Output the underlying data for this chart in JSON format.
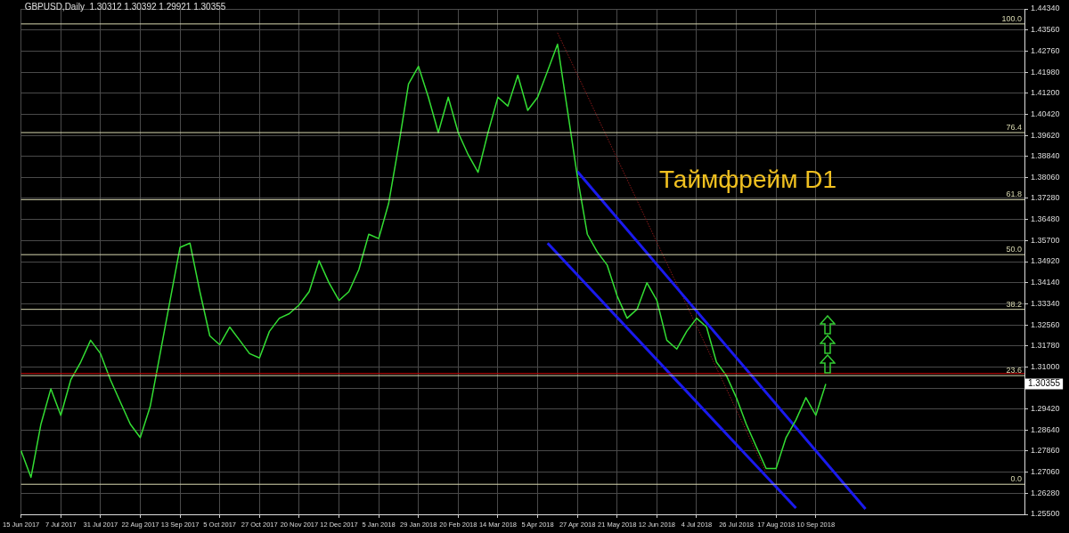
{
  "chart_data": {
    "type": "line",
    "title": "GBPUSD,Daily  1.30312 1.30392 1.29921 1.30355",
    "categories": [
      "15 Jun 2017",
      null,
      null,
      null,
      "7 Jul 2017",
      null,
      null,
      null,
      "31 Jul 2017",
      null,
      null,
      null,
      "22 Aug 2017",
      null,
      null,
      null,
      "13 Sep 2017",
      null,
      null,
      null,
      "5 Oct 2017",
      null,
      null,
      null,
      "27 Oct 2017",
      null,
      null,
      null,
      "20 Nov 2017",
      null,
      null,
      null,
      "12 Dec 2017",
      null,
      null,
      null,
      "5 Jan 2018",
      null,
      null,
      null,
      "29 Jan 2018",
      null,
      null,
      null,
      "20 Feb 2018",
      null,
      null,
      null,
      "14 Mar 2018",
      null,
      null,
      null,
      "5 Apr 2018",
      null,
      null,
      null,
      "27 Apr 2018",
      null,
      null,
      null,
      "21 May 2018",
      null,
      null,
      null,
      "12 Jun 2018",
      null,
      null,
      null,
      "4 Jul 2018",
      null,
      null,
      null,
      "26 Jul 2018",
      null,
      null,
      null,
      "17 Aug 2018",
      null,
      null,
      null,
      "10 Sep 2018",
      null,
      null,
      null,
      null,
      null,
      null,
      null,
      null,
      null,
      null,
      null,
      null,
      null,
      null,
      null,
      null,
      null,
      null,
      null,
      null,
      null
    ],
    "series": [
      {
        "color": "#33dd33",
        "values": [
          1.2787,
          1.2688,
          1.2886,
          1.3018,
          1.2919,
          1.3051,
          1.3117,
          1.3199,
          1.3149,
          1.3051,
          1.2968,
          1.2886,
          1.2836,
          1.2952,
          1.3149,
          1.3347,
          1.3545,
          1.3561,
          1.338,
          1.3215,
          1.3182,
          1.3248,
          1.3199,
          1.3149,
          1.3133,
          1.3232,
          1.3281,
          1.3298,
          1.3331,
          1.338,
          1.3495,
          1.3413,
          1.3347,
          1.338,
          1.3462,
          1.3594,
          1.3578,
          1.3709,
          1.3923,
          1.4154,
          1.422,
          1.4105,
          1.3973,
          1.4105,
          1.3973,
          1.3891,
          1.3825,
          1.3973,
          1.4105,
          1.4072,
          1.4187,
          1.4056,
          1.4105,
          1.4203,
          1.4302,
          1.4056,
          1.3808,
          1.3594,
          1.3528,
          1.3479,
          1.3364,
          1.3281,
          1.3314,
          1.3413,
          1.3347,
          1.3199,
          1.3166,
          1.3232,
          1.3281,
          1.3248,
          1.3117,
          1.3067,
          1.2985,
          1.2886,
          1.2803,
          1.2721,
          1.2721,
          1.2836,
          1.2902,
          1.2985,
          1.2919,
          1.3036,
          null,
          null,
          null,
          null,
          null,
          null,
          null,
          null,
          null,
          null,
          null,
          null,
          null,
          null,
          null,
          null,
          null,
          null,
          null,
          null
        ]
      },
      {
        "color": "#1a1aee",
        "values": [
          null,
          null,
          null,
          null,
          null,
          null,
          null,
          null,
          null,
          null,
          null,
          null,
          null,
          null,
          null,
          null,
          null,
          null,
          null,
          null,
          null,
          null,
          null,
          null,
          null,
          null,
          null,
          null,
          null,
          null,
          null,
          null,
          null,
          null,
          null,
          null,
          null,
          null,
          null,
          null,
          null,
          null,
          null,
          null,
          null,
          null,
          null,
          null,
          null,
          null,
          null,
          null,
          null,
          null,
          null,
          null,
          1.3828,
          null,
          null,
          null,
          null,
          null,
          null,
          null,
          null,
          null,
          null,
          null,
          null,
          null,
          null,
          null,
          null,
          null,
          null,
          null,
          null,
          null,
          null,
          null,
          null,
          null,
          null,
          null,
          null,
          1.257,
          null,
          null,
          null,
          null,
          null,
          null,
          null,
          null,
          null,
          null,
          null,
          null,
          null,
          null,
          null,
          null
        ]
      },
      {
        "color": "#1a1aee",
        "values": [
          null,
          null,
          null,
          null,
          null,
          null,
          null,
          null,
          null,
          null,
          null,
          null,
          null,
          null,
          null,
          null,
          null,
          null,
          null,
          null,
          null,
          null,
          null,
          null,
          null,
          null,
          null,
          null,
          null,
          null,
          null,
          null,
          null,
          null,
          null,
          null,
          null,
          null,
          null,
          null,
          null,
          null,
          null,
          null,
          null,
          null,
          null,
          null,
          null,
          null,
          null,
          null,
          null,
          1.3561,
          null,
          null,
          null,
          null,
          null,
          null,
          null,
          null,
          null,
          null,
          null,
          null,
          null,
          null,
          null,
          null,
          null,
          null,
          null,
          null,
          null,
          null,
          null,
          null,
          1.2573,
          null,
          null,
          null,
          null,
          null,
          null,
          null,
          null,
          null,
          null,
          null,
          null,
          null,
          null,
          null,
          null,
          null,
          null,
          null,
          null,
          null,
          null,
          null
        ]
      },
      {
        "color": "#8b1a1a",
        "line_style": "dotted",
        "values": [
          null,
          null,
          null,
          null,
          null,
          null,
          null,
          null,
          null,
          null,
          null,
          null,
          null,
          null,
          null,
          null,
          null,
          null,
          null,
          null,
          null,
          null,
          null,
          null,
          null,
          null,
          null,
          null,
          null,
          null,
          null,
          null,
          null,
          null,
          null,
          null,
          null,
          null,
          null,
          null,
          null,
          null,
          null,
          null,
          null,
          null,
          null,
          null,
          null,
          null,
          null,
          null,
          null,
          null,
          1.4345,
          null,
          null,
          null,
          null,
          null,
          null,
          null,
          null,
          null,
          null,
          null,
          null,
          null,
          null,
          null,
          null,
          null,
          null,
          null,
          null,
          1.2705,
          null,
          null,
          null,
          null,
          null,
          null,
          null,
          null,
          null,
          null,
          null,
          null,
          null,
          null,
          null,
          null,
          null,
          null,
          null,
          null,
          null,
          null,
          null,
          null,
          null,
          null
        ]
      }
    ],
    "ylim": [
      1.255,
      1.4434
    ],
    "yticks": [
      {
        "value": 1.255,
        "label": "1.25500"
      },
      {
        "value": 1.2628,
        "label": "1.26280"
      },
      {
        "value": 1.2706,
        "label": "1.27060"
      },
      {
        "value": 1.2786,
        "label": "1.27860"
      },
      {
        "value": 1.2864,
        "label": "1.28640"
      },
      {
        "value": 1.2942,
        "label": "1.29420"
      },
      {
        "value": 1.302,
        "label": null
      },
      {
        "value": 1.31,
        "label": "1.31000"
      },
      {
        "value": 1.3178,
        "label": "1.31780"
      },
      {
        "value": 1.3256,
        "label": "1.32560"
      },
      {
        "value": 1.3334,
        "label": "1.33340"
      },
      {
        "value": 1.3414,
        "label": "1.34140"
      },
      {
        "value": 1.3492,
        "label": "1.34920"
      },
      {
        "value": 1.357,
        "label": "1.35700"
      },
      {
        "value": 1.3648,
        "label": "1.36480"
      },
      {
        "value": 1.3728,
        "label": "1.37280"
      },
      {
        "value": 1.3806,
        "label": "1.38060"
      },
      {
        "value": 1.3884,
        "label": "1.38840"
      },
      {
        "value": 1.3962,
        "label": "1.39620"
      },
      {
        "value": 1.4042,
        "label": "1.40420"
      },
      {
        "value": 1.412,
        "label": "1.41200"
      },
      {
        "value": 1.4198,
        "label": "1.41980"
      },
      {
        "value": 1.4276,
        "label": "1.42760"
      },
      {
        "value": 1.4356,
        "label": "1.43560"
      },
      {
        "value": 1.4434,
        "label": "1.44340"
      }
    ],
    "ref_lines": [
      {
        "axis": "y",
        "value": 1.4378,
        "color": "#d8d8b0"
      },
      {
        "axis": "y",
        "value": 1.3973,
        "color": "#d8d8b0"
      },
      {
        "axis": "y",
        "value": 1.3723,
        "color": "#d8d8b0"
      },
      {
        "axis": "y",
        "value": 1.3518,
        "color": "#d8d8b0"
      },
      {
        "axis": "y",
        "value": 1.3314,
        "color": "#d8d8b0"
      },
      {
        "axis": "y",
        "value": 1.3067,
        "color": "#d8d8b0"
      },
      {
        "axis": "y",
        "value": 1.2662,
        "color": "#d8d8b0"
      },
      {
        "axis": "y",
        "value": 1.3075,
        "color": "#cc0000"
      }
    ],
    "annotations": [
      "Таймфрейм D1",
      "1.30355",
      {
        "text": "100.0",
        "y": 1.4378
      },
      {
        "text": "76.4",
        "y": 1.3973
      },
      {
        "text": "61.8",
        "y": 1.3723
      },
      {
        "text": "50.0",
        "y": 1.3518
      },
      {
        "text": "38.2",
        "y": 1.3314
      },
      {
        "text": "23.6",
        "y": 1.3067
      },
      {
        "text": "0.0",
        "y": 1.2662
      }
    ],
    "grid": true,
    "legend": false,
    "marker": "none"
  }
}
